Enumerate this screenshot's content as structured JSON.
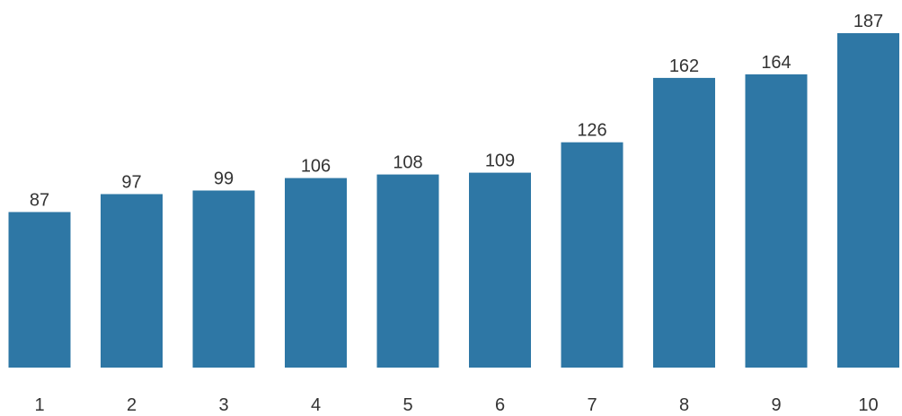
{
  "chart_data": {
    "type": "bar",
    "categories": [
      "1",
      "2",
      "3",
      "4",
      "5",
      "6",
      "7",
      "8",
      "9",
      "10"
    ],
    "values": [
      87,
      97,
      99,
      106,
      108,
      109,
      126,
      162,
      164,
      187
    ],
    "title": "",
    "xlabel": "",
    "ylabel": "",
    "ylim": [
      0,
      187
    ],
    "grid": false,
    "legend": "none",
    "bar_color": "#2e77a5",
    "label_color": "#333333"
  }
}
